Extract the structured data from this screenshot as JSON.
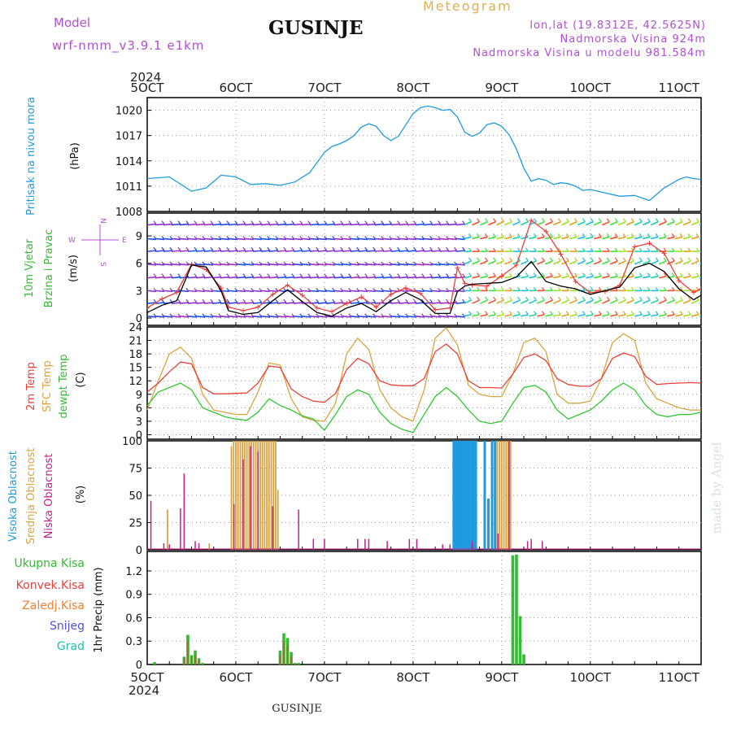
{
  "header": {
    "model_label": "Model",
    "model_name": "wrf-nmm_v3.9.1  e1km",
    "title": "GUSINJE",
    "meteogram": "Meteogram",
    "lonlat": "lon,lat (19.8312E, 42.5625N)",
    "elevation": "Nadmorska Visina 924m",
    "model_elevation": "Nadmorska Visina u modelu 981.584m"
  },
  "footer": {
    "station": "GUSINJE",
    "credit": "made by Angel"
  },
  "colors": {
    "pressure": "#1e9be0",
    "t2m": "#e8413c",
    "sfc": "#d9a441",
    "dew": "#2fc82f",
    "high_cloud": "#1e9be0",
    "mid_cloud": "#d9a441",
    "low_cloud": "#c0208a",
    "total_precip": "#33bb33",
    "conv": "#e8413c",
    "frozen": "#f08030",
    "snow": "#5050e0",
    "graupel": "#20c0b0",
    "purple_text": "#b050d0",
    "gold_text": "#e0b050"
  },
  "time_axis": {
    "year": "2024",
    "labels": [
      "5OCT",
      "6OCT",
      "7OCT",
      "8OCT",
      "9OCT",
      "10OCT",
      "11OCT"
    ]
  },
  "panels": {
    "pressure": {
      "label": "Pritisak na nivou mora",
      "unit": "(hPa)",
      "ticks": [
        "1008",
        "1011",
        "1014",
        "1017",
        "1020"
      ]
    },
    "wind": {
      "label1": "10m Vjetar",
      "label2": "Brzina i Pravac",
      "unit": "(m/s)",
      "ticks": [
        "0",
        "3",
        "6",
        "9"
      ],
      "compass": {
        "n": "N",
        "s": "S",
        "w": "W",
        "e": "E"
      }
    },
    "temp": {
      "label1": "2m Temp",
      "label2": "SFC Temp",
      "label3": "dewpt Temp",
      "unit": "(C)",
      "ticks": [
        "0",
        "3",
        "6",
        "9",
        "12",
        "15",
        "18",
        "21",
        "24"
      ]
    },
    "cloud": {
      "label1": "Visoka Oblacnost",
      "label2": "Srednja Oblacnost",
      "label3": "Niska Oblacnost",
      "unit": "(%)",
      "ticks": [
        "0",
        "25",
        "50",
        "75",
        "100"
      ]
    },
    "precip": {
      "unit": "1hr Precip (mm)",
      "ticks": [
        "0",
        "0.3",
        "0.6",
        "0.9",
        "1.2"
      ],
      "legend": [
        "Ukupna Kisa",
        "Konvek.Kisa",
        "Zaledj.Kisa",
        "Snijeg",
        "Grad"
      ]
    }
  },
  "chart_data": [
    {
      "type": "line",
      "title": "Pritisak na nivou mora",
      "ylabel": "(hPa)",
      "ylim": [
        1008,
        1021.5
      ],
      "x_hours": [
        0,
        6,
        12,
        16,
        20,
        24,
        28,
        32,
        36,
        40,
        44,
        48,
        50,
        52,
        54,
        56,
        58,
        60,
        62,
        64,
        66,
        68,
        72,
        74,
        76,
        78,
        80,
        82,
        84,
        86,
        88,
        90,
        92,
        94,
        96,
        98,
        100,
        102,
        104,
        106,
        108,
        110,
        112,
        114,
        116,
        118,
        120,
        124,
        128,
        132,
        136,
        140,
        144,
        146,
        148,
        150
      ],
      "series": [
        {
          "name": "pressure",
          "values": [
            1011.9,
            1012.1,
            1010.4,
            1010.8,
            1012.3,
            1012.1,
            1011.2,
            1011.3,
            1011.1,
            1011.5,
            1012.6,
            1015.0,
            1015.7,
            1016.0,
            1016.4,
            1017.0,
            1018.0,
            1018.4,
            1018.1,
            1017.0,
            1016.4,
            1016.9,
            1019.6,
            1020.3,
            1020.5,
            1020.3,
            1020.0,
            1020.1,
            1019.2,
            1017.4,
            1016.9,
            1017.3,
            1018.3,
            1018.5,
            1018.1,
            1017.1,
            1015.4,
            1013.1,
            1011.6,
            1011.9,
            1011.7,
            1011.2,
            1011.4,
            1011.3,
            1011.0,
            1010.5,
            1010.6,
            1010.2,
            1009.8,
            1009.9,
            1009.3,
            1010.8,
            1011.8,
            1012.1,
            1011.9,
            1011.8
          ]
        }
      ]
    },
    {
      "type": "line",
      "title": "10m Vjetar Brzina i Pravac",
      "ylabel": "(m/s)",
      "ylim": [
        -0.8,
        11.5
      ],
      "x_hours": [
        0,
        4,
        8,
        12,
        16,
        20,
        22,
        26,
        30,
        34,
        38,
        42,
        46,
        50,
        54,
        58,
        62,
        66,
        70,
        74,
        78,
        82,
        84,
        86,
        88,
        92,
        96,
        100,
        104,
        108,
        112,
        116,
        120,
        124,
        128,
        132,
        136,
        140,
        144,
        148,
        150
      ],
      "series": [
        {
          "name": "wind speed",
          "values": [
            0.6,
            1.4,
            1.9,
            5.8,
            5.6,
            3.0,
            0.8,
            0.4,
            0.6,
            1.9,
            3.1,
            1.8,
            0.6,
            0.2,
            1.1,
            1.6,
            0.7,
            1.9,
            2.8,
            2.0,
            0.5,
            0.5,
            2.9,
            3.5,
            3.7,
            3.8,
            3.9,
            4.5,
            6.2,
            4.0,
            3.5,
            3.2,
            2.6,
            3.0,
            3.4,
            5.5,
            6.0,
            5.1,
            3.2,
            2.0,
            2.5
          ]
        },
        {
          "name": "wind gust",
          "values": [
            1.1,
            2.1,
            2.8,
            5.9,
            5.3,
            3.3,
            1.2,
            0.8,
            1.2,
            2.6,
            3.6,
            2.5,
            1.1,
            0.7,
            1.6,
            2.3,
            1.2,
            2.6,
            3.3,
            2.7,
            0.9,
            1.1,
            5.5,
            3.8,
            3.6,
            3.5,
            4.6,
            5.8,
            10.7,
            9.5,
            7.0,
            4.0,
            2.8,
            2.9,
            3.6,
            7.8,
            8.2,
            7.1,
            4.1,
            2.8,
            3.2
          ]
        }
      ]
    },
    {
      "type": "line",
      "title": "2m Temp / SFC Temp / dewpt Temp",
      "ylabel": "(C)",
      "ylim": [
        -1,
        24
      ],
      "x_hours": [
        0,
        3,
        6,
        9,
        12,
        15,
        18,
        21,
        24,
        27,
        30,
        33,
        36,
        39,
        42,
        45,
        48,
        51,
        54,
        57,
        60,
        63,
        66,
        69,
        72,
        75,
        78,
        81,
        84,
        87,
        90,
        93,
        96,
        99,
        102,
        105,
        108,
        111,
        114,
        117,
        120,
        123,
        126,
        129,
        132,
        135,
        138,
        141,
        144,
        147,
        150
      ],
      "series": [
        {
          "name": "2m",
          "values": [
            9.5,
            11.5,
            14.0,
            16.2,
            15.8,
            10.5,
            9.1,
            9.1,
            9.2,
            9.3,
            11.5,
            15.3,
            15.0,
            10.2,
            8.5,
            7.5,
            7.2,
            9.2,
            14.5,
            17.0,
            15.8,
            12.0,
            11.1,
            10.9,
            10.9,
            12.5,
            18.5,
            20.2,
            18.0,
            12.0,
            10.5,
            10.5,
            10.4,
            13.5,
            17.2,
            18.0,
            16.5,
            12.5,
            11.2,
            10.8,
            10.8,
            12.5,
            17.0,
            18.2,
            17.4,
            13.0,
            11.2,
            11.4,
            11.5,
            11.6,
            11.5
          ]
        },
        {
          "name": "SFC",
          "values": [
            5.5,
            12.0,
            18.0,
            19.5,
            17.0,
            9.0,
            5.5,
            5.0,
            4.5,
            4.5,
            9.5,
            16.0,
            15.5,
            8.0,
            4.0,
            3.2,
            3.0,
            7.0,
            18.0,
            21.5,
            19.0,
            10.0,
            6.0,
            4.0,
            3.0,
            10.0,
            21.5,
            23.8,
            20.0,
            11.0,
            9.0,
            8.5,
            8.5,
            13.5,
            20.5,
            21.5,
            18.5,
            9.0,
            7.0,
            7.0,
            7.5,
            12.5,
            20.5,
            22.5,
            21.0,
            11.5,
            8.0,
            7.0,
            6.0,
            5.5,
            5.5
          ]
        },
        {
          "name": "dewpt",
          "values": [
            6.5,
            9.5,
            10.5,
            11.5,
            10.0,
            6.0,
            5.0,
            4.0,
            3.5,
            3.2,
            5.0,
            8.0,
            6.5,
            5.5,
            4.2,
            3.5,
            1.0,
            4.5,
            8.5,
            10.0,
            9.0,
            5.0,
            2.5,
            1.2,
            0.5,
            4.5,
            8.5,
            10.5,
            8.5,
            5.5,
            3.0,
            2.5,
            3.0,
            7.0,
            10.5,
            11.0,
            9.5,
            5.5,
            3.5,
            4.5,
            5.5,
            7.5,
            10.0,
            11.5,
            10.0,
            6.5,
            4.5,
            4.0,
            4.5,
            4.5,
            5.0
          ]
        }
      ]
    },
    {
      "type": "bar",
      "title": "Oblacnost",
      "ylabel": "(%)",
      "ylim": [
        0,
        100
      ],
      "series": [
        {
          "name": "high",
          "x_hours": [
            83,
            83.6,
            84.2,
            84.8,
            85.4,
            86,
            86.6,
            87.2,
            87.8,
            88.4,
            89,
            91.4,
            92.4,
            93.4,
            94.2
          ],
          "values": [
            100,
            100,
            100,
            100,
            100,
            100,
            100,
            100,
            100,
            100,
            100,
            100,
            47,
            100,
            100
          ]
        },
        {
          "name": "mid",
          "x_hours": [
            22.8,
            23.4,
            24,
            24.6,
            25.2,
            25.8,
            26.4,
            27,
            27.6,
            28.2,
            28.8,
            29.4,
            30,
            30.6,
            31.2,
            31.8,
            32.4,
            33,
            33.6,
            34.2,
            34.8,
            35.4,
            5.5,
            16.8,
            94.8,
            95.4,
            96,
            96.6,
            97.2,
            97.8,
            98.4
          ],
          "values": [
            95,
            100,
            100,
            100,
            100,
            100,
            100,
            100,
            100,
            100,
            100,
            100,
            100,
            100,
            100,
            100,
            100,
            100,
            100,
            100,
            100,
            55,
            37,
            6,
            100,
            100,
            100,
            100,
            100,
            100,
            100
          ]
        },
        {
          "name": "low",
          "x_hours": [
            1,
            4.5,
            6,
            9,
            10,
            13,
            14,
            23.5,
            26,
            28,
            30,
            34,
            41,
            45,
            48,
            57,
            59,
            60,
            65,
            71,
            73,
            80,
            82,
            88,
            95,
            98,
            103,
            104,
            107
          ],
          "values": [
            45,
            6,
            5,
            38,
            70,
            8,
            6,
            42,
            83,
            95,
            90,
            40,
            37,
            10,
            10,
            10,
            10,
            10,
            8,
            10,
            10,
            5,
            5,
            8,
            15,
            100,
            8,
            10,
            8
          ]
        }
      ]
    },
    {
      "type": "bar",
      "title": "1hr Precip",
      "ylabel": "1hr Precip (mm)",
      "ylim": [
        0,
        1.45
      ],
      "series": [
        {
          "name": "Ukupna Kisa",
          "x_hours": [
            2,
            10,
            11,
            12,
            13,
            14,
            15,
            36,
            37,
            38,
            39,
            40,
            41,
            99,
            100,
            101,
            102
          ],
          "values": [
            0.03,
            0.1,
            0.38,
            0.12,
            0.18,
            0.08,
            0.02,
            0.18,
            0.4,
            0.34,
            0.16,
            0.02,
            0.02,
            1.4,
            1.41,
            0.62,
            0.13
          ]
        },
        {
          "name": "Konvek.Kisa",
          "x_hours": [
            10,
            11,
            12,
            13,
            14,
            36,
            37,
            38,
            39
          ],
          "values": [
            0.08,
            0.3,
            0.1,
            0.12,
            0.05,
            0.12,
            0.3,
            0.25,
            0.1
          ]
        }
      ]
    }
  ]
}
